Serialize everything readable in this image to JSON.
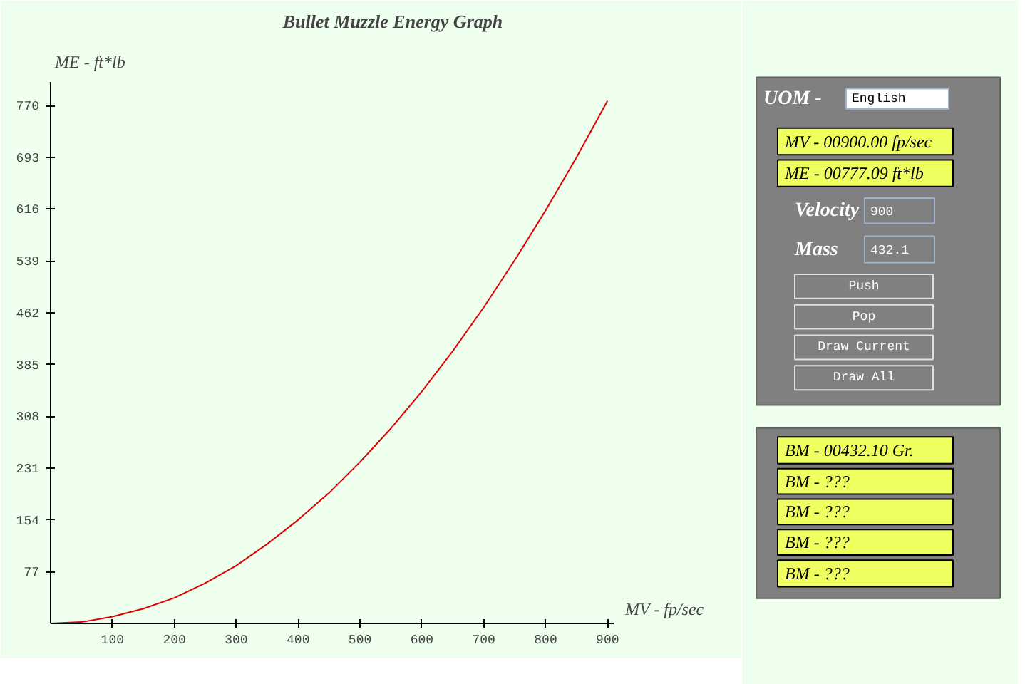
{
  "chart_data": [
    {
      "type": "line",
      "title": "Bullet Muzzle Energy Graph",
      "xlabel": "MV - fp/sec",
      "ylabel": "ME - ft*lb",
      "x": [
        0,
        50,
        100,
        150,
        200,
        250,
        300,
        350,
        400,
        450,
        500,
        550,
        600,
        650,
        700,
        750,
        800,
        850,
        900
      ],
      "series": [
        {
          "color": "#e00000",
          "values": [
            0,
            2,
            10,
            22,
            38,
            60,
            86,
            118,
            154,
            194,
            240,
            290,
            345,
            405,
            470,
            540,
            614,
            693,
            777
          ]
        }
      ],
      "xlim": [
        0,
        910
      ],
      "ylim": [
        0,
        805
      ],
      "xticks": [
        100,
        200,
        300,
        400,
        500,
        600,
        700,
        800,
        900
      ],
      "yticks": [
        77,
        154,
        231,
        308,
        385,
        462,
        539,
        616,
        693,
        770
      ],
      "grid": false
    },
    {
      "type": "other",
      "annotations": [
        "UOM -",
        "English",
        "MV - 00900.00 fp/sec",
        "ME - 00777.09 ft*lb",
        "Velocity",
        "900",
        "Mass",
        "432.1",
        "Push",
        "Pop",
        "Draw Current",
        "Draw All",
        "BM - 00432.10 Gr.",
        "BM - ???",
        "BM - ???",
        "BM - ???",
        "BM - ???"
      ]
    }
  ]
}
